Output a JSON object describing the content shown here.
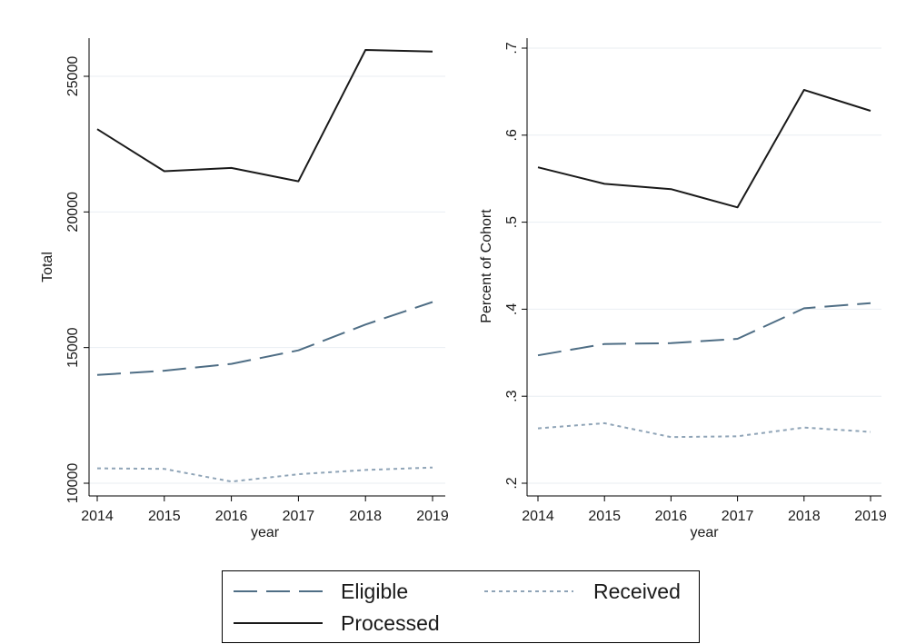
{
  "chart_data": [
    {
      "type": "line",
      "x": [
        2014,
        2015,
        2016,
        2017,
        2018,
        2019
      ],
      "xlabel": "year",
      "ylabel": "Total",
      "ylim": [
        10000,
        26000
      ],
      "yticks": [
        10000,
        15000,
        20000,
        25000
      ],
      "ytick_labels": [
        "10000",
        "15000",
        "20000",
        "25000"
      ],
      "xtick_labels": [
        "2014",
        "2015",
        "2016",
        "2017",
        "2018",
        "2019"
      ],
      "grid": true,
      "series": [
        {
          "name": "Processed",
          "values": [
            23050,
            21500,
            21620,
            21130,
            25970,
            25910
          ],
          "color": "#1a1a1a",
          "style": "solid"
        },
        {
          "name": "Eligible",
          "values": [
            13990,
            14150,
            14400,
            14900,
            15850,
            16680
          ],
          "color": "#4f6e85",
          "style": "dashed"
        },
        {
          "name": "Received",
          "values": [
            10550,
            10530,
            10060,
            10330,
            10490,
            10580
          ],
          "color": "#8fa4b7",
          "style": "dotted"
        }
      ]
    },
    {
      "type": "line",
      "x": [
        2014,
        2015,
        2016,
        2017,
        2018,
        2019
      ],
      "xlabel": "year",
      "ylabel": "Percent of Cohort",
      "ylim": [
        0.2,
        0.7
      ],
      "yticks": [
        0.2,
        0.3,
        0.4,
        0.5,
        0.6,
        0.7
      ],
      "ytick_labels": [
        ".2",
        ".3",
        ".4",
        ".5",
        ".6",
        ".7"
      ],
      "xtick_labels": [
        "2014",
        "2015",
        "2016",
        "2017",
        "2018",
        "2019"
      ],
      "grid": true,
      "series": [
        {
          "name": "Processed",
          "values": [
            0.563,
            0.544,
            0.538,
            0.517,
            0.652,
            0.628
          ],
          "color": "#1a1a1a",
          "style": "solid"
        },
        {
          "name": "Eligible",
          "values": [
            0.347,
            0.36,
            0.361,
            0.366,
            0.401,
            0.407
          ],
          "color": "#4f6e85",
          "style": "dashed"
        },
        {
          "name": "Received",
          "values": [
            0.263,
            0.269,
            0.253,
            0.254,
            0.264,
            0.259
          ],
          "color": "#8fa4b7",
          "style": "dotted"
        }
      ]
    }
  ],
  "legend": {
    "placement": "bottom-center",
    "items": [
      {
        "label": "Eligible",
        "series": "Eligible"
      },
      {
        "label": "Received",
        "series": "Received"
      },
      {
        "label": "Processed",
        "series": "Processed"
      }
    ]
  }
}
